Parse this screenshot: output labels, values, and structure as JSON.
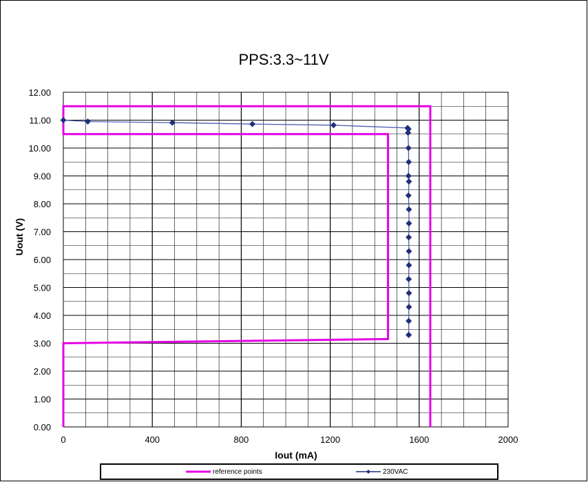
{
  "chart_data": {
    "type": "line",
    "title": "PPS:3.3~11V",
    "xlabel": "Iout (mA)",
    "ylabel": "Uout (V)",
    "xlim": [
      0,
      2000
    ],
    "ylim": [
      0,
      12
    ],
    "x_ticks": [
      "0",
      "400",
      "800",
      "1200",
      "1600",
      "2000"
    ],
    "y_ticks": [
      "0.00",
      "1.00",
      "2.00",
      "3.00",
      "4.00",
      "5.00",
      "6.00",
      "7.00",
      "8.00",
      "9.00",
      "10.00",
      "11.00",
      "12.00"
    ],
    "grid": true,
    "legend_position": "bottom",
    "series": [
      {
        "name": "reference points",
        "color": "#e600e6",
        "marker": "none",
        "segments": [
          {
            "x": [
              0,
              0,
              1460,
              1460,
              0,
              0
            ],
            "y": [
              0,
              3.0,
              3.15,
              10.5,
              10.5,
              11.0
            ]
          },
          {
            "x": [
              0,
              0,
              1650,
              1650
            ],
            "y": [
              11.0,
              11.5,
              11.5,
              0
            ]
          }
        ]
      },
      {
        "name": "230VAC",
        "color": "#1f2f7a",
        "marker": "diamond",
        "x": [
          0,
          110,
          490,
          850,
          1215,
          1548,
          1552,
          1550,
          1552,
          1553,
          1552,
          1554,
          1552,
          1554,
          1554,
          1553,
          1554,
          1554,
          1553,
          1554,
          1554,
          1553,
          1553,
          1553
        ],
        "y": [
          11.0,
          10.95,
          10.91,
          10.86,
          10.82,
          10.72,
          10.68,
          10.55,
          10.0,
          9.5,
          9.0,
          8.8,
          8.3,
          7.8,
          7.3,
          6.8,
          6.3,
          5.8,
          5.3,
          4.8,
          4.3,
          3.8,
          3.3,
          3.3
        ]
      }
    ]
  }
}
